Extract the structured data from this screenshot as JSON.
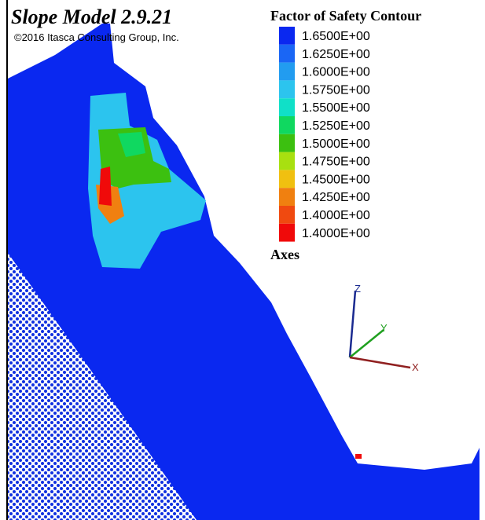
{
  "header": {
    "title": "Slope Model 2.9.21",
    "copyright": "©2016 Itasca Consulting Group, Inc."
  },
  "legend": {
    "title": "Factor of Safety Contour",
    "items": [
      {
        "label": "1.6500E+00",
        "color": "#0a28f0"
      },
      {
        "label": "1.6250E+00",
        "color": "#1a66f5"
      },
      {
        "label": "1.6000E+00",
        "color": "#229cf0"
      },
      {
        "label": "1.5750E+00",
        "color": "#2cc4ee"
      },
      {
        "label": "1.5500E+00",
        "color": "#10e0c8"
      },
      {
        "label": "1.5250E+00",
        "color": "#10d860"
      },
      {
        "label": "1.5000E+00",
        "color": "#3cc010"
      },
      {
        "label": "1.4750E+00",
        "color": "#a8e010"
      },
      {
        "label": "1.4500E+00",
        "color": "#f0c010"
      },
      {
        "label": "1.4250E+00",
        "color": "#f08010"
      },
      {
        "label": "1.4000E+00",
        "color": "#f04a10"
      },
      {
        "label": "1.4000E+00",
        "color": "#f00a0a"
      }
    ]
  },
  "axes": {
    "title": "Axes",
    "z": "Z",
    "y": "Y",
    "x": "X"
  }
}
